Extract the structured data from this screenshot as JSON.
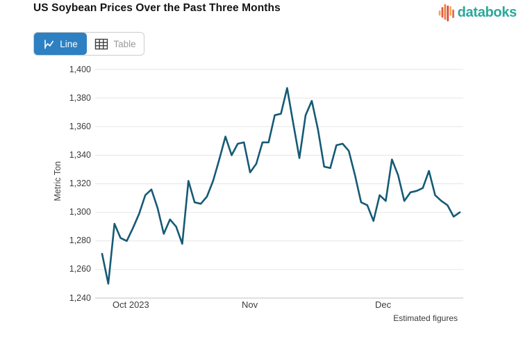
{
  "header": {
    "title": "US Soybean Prices Over the Past Three Months",
    "logo_text": "databoks",
    "logo_text_color": "#2aa79b",
    "logo_bar_colors": [
      "#f0a55f",
      "#e15a47",
      "#f08434",
      "#d84b3c",
      "#f4ae57",
      "#e3685c"
    ]
  },
  "toolbar": {
    "line_label": "Line",
    "table_label": "Table",
    "active_view": "Line",
    "active_bg": "#2d80c2"
  },
  "chart_data": {
    "type": "line",
    "title": "US Soybean Prices Over the Past Three Months",
    "xlabel": "",
    "ylabel": "Metric Ton",
    "ylim": [
      1240,
      1400
    ],
    "y_tick_step": 20,
    "y_ticks": [
      "1,240",
      "1,260",
      "1,280",
      "1,300",
      "1,320",
      "1,340",
      "1,360",
      "1,380",
      "1,400"
    ],
    "x_ticks": [
      "Oct 2023",
      "Nov",
      "Dec"
    ],
    "grid": true,
    "legend": "none",
    "line_color": "#155a75",
    "grid_color": "#e5e5e5",
    "axis_color": "#c2c2c2",
    "footnote": "Estimated figures",
    "values": [
      1271,
      1250,
      1292,
      1282,
      1280,
      1289,
      1299,
      1312,
      1316,
      1303,
      1285,
      1295,
      1290,
      1278,
      1322,
      1307,
      1306,
      1311,
      1322,
      1337,
      1353,
      1340,
      1348,
      1349,
      1328,
      1334,
      1349,
      1349,
      1368,
      1369,
      1387,
      1362,
      1338,
      1368,
      1378,
      1358,
      1332,
      1331,
      1347,
      1348,
      1343,
      1326,
      1307,
      1305,
      1294,
      1312,
      1308,
      1337,
      1326,
      1308,
      1314,
      1315,
      1317,
      1329,
      1312,
      1308,
      1305,
      1297,
      1300
    ]
  }
}
